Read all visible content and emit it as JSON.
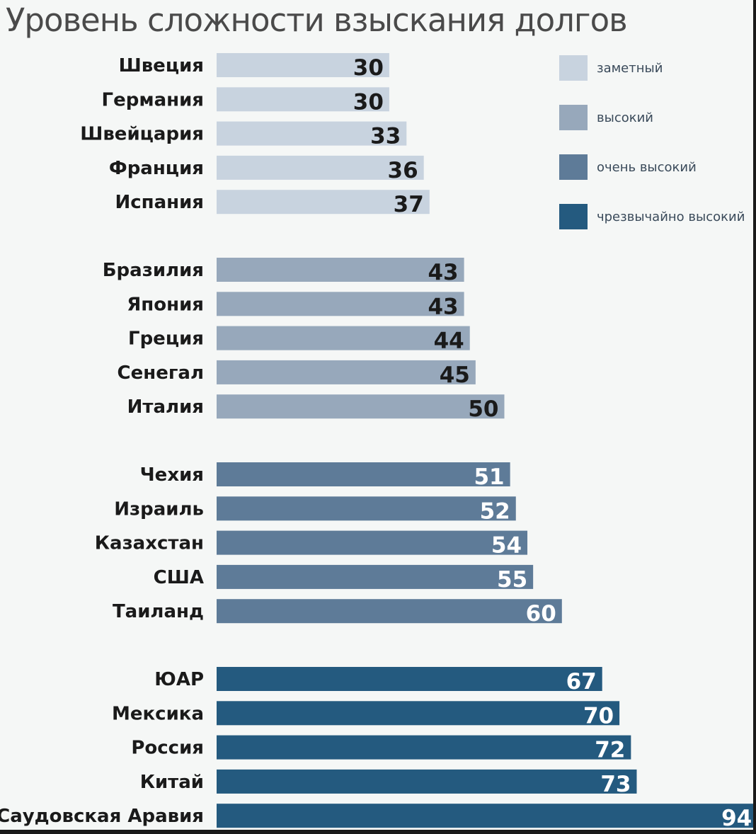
{
  "title": "Уровень сложности взыскания долгов",
  "colors": {
    "noticeable": "#c8d3df",
    "high": "#97a8bb",
    "very_high": "#5e7b98",
    "extremely_high": "#245a7f",
    "label_dark": "#1a1a1a",
    "label_light": "#ffffff"
  },
  "legend": [
    {
      "label": "заметный",
      "color_key": "noticeable"
    },
    {
      "label": "высокий",
      "color_key": "high"
    },
    {
      "label": "очень высокий",
      "color_key": "very_high"
    },
    {
      "label": "чрезвычайно высокий",
      "color_key": "extremely_high"
    }
  ],
  "chart_data": {
    "type": "bar",
    "orientation": "horizontal",
    "title": "Уровень сложности взыскания долгов",
    "groups": [
      {
        "name": "заметный",
        "color_key": "noticeable",
        "label_color": "label_dark",
        "categories": [
          "Швеция",
          "Германия",
          "Швейцария",
          "Франция",
          "Испания"
        ],
        "values": [
          30,
          30,
          33,
          36,
          37
        ]
      },
      {
        "name": "высокий",
        "color_key": "high",
        "label_color": "label_dark",
        "categories": [
          "Бразилия",
          "Япония",
          "Греция",
          "Сенегал",
          "Италия"
        ],
        "values": [
          43,
          43,
          44,
          45,
          50
        ]
      },
      {
        "name": "очень высокий",
        "color_key": "very_high",
        "label_color": "label_light",
        "categories": [
          "Чехия",
          "Израиль",
          "Казахстан",
          "США",
          "Таиланд"
        ],
        "values": [
          51,
          52,
          54,
          55,
          60
        ]
      },
      {
        "name": "чрезвычайно высокий",
        "color_key": "extremely_high",
        "label_color": "label_light",
        "categories": [
          "ЮАР",
          "Мексика",
          "Россия",
          "Китай",
          "Саудовская Аравия"
        ],
        "values": [
          67,
          70,
          72,
          73,
          94
        ]
      }
    ],
    "legend_position": "top-right",
    "grid": false
  }
}
